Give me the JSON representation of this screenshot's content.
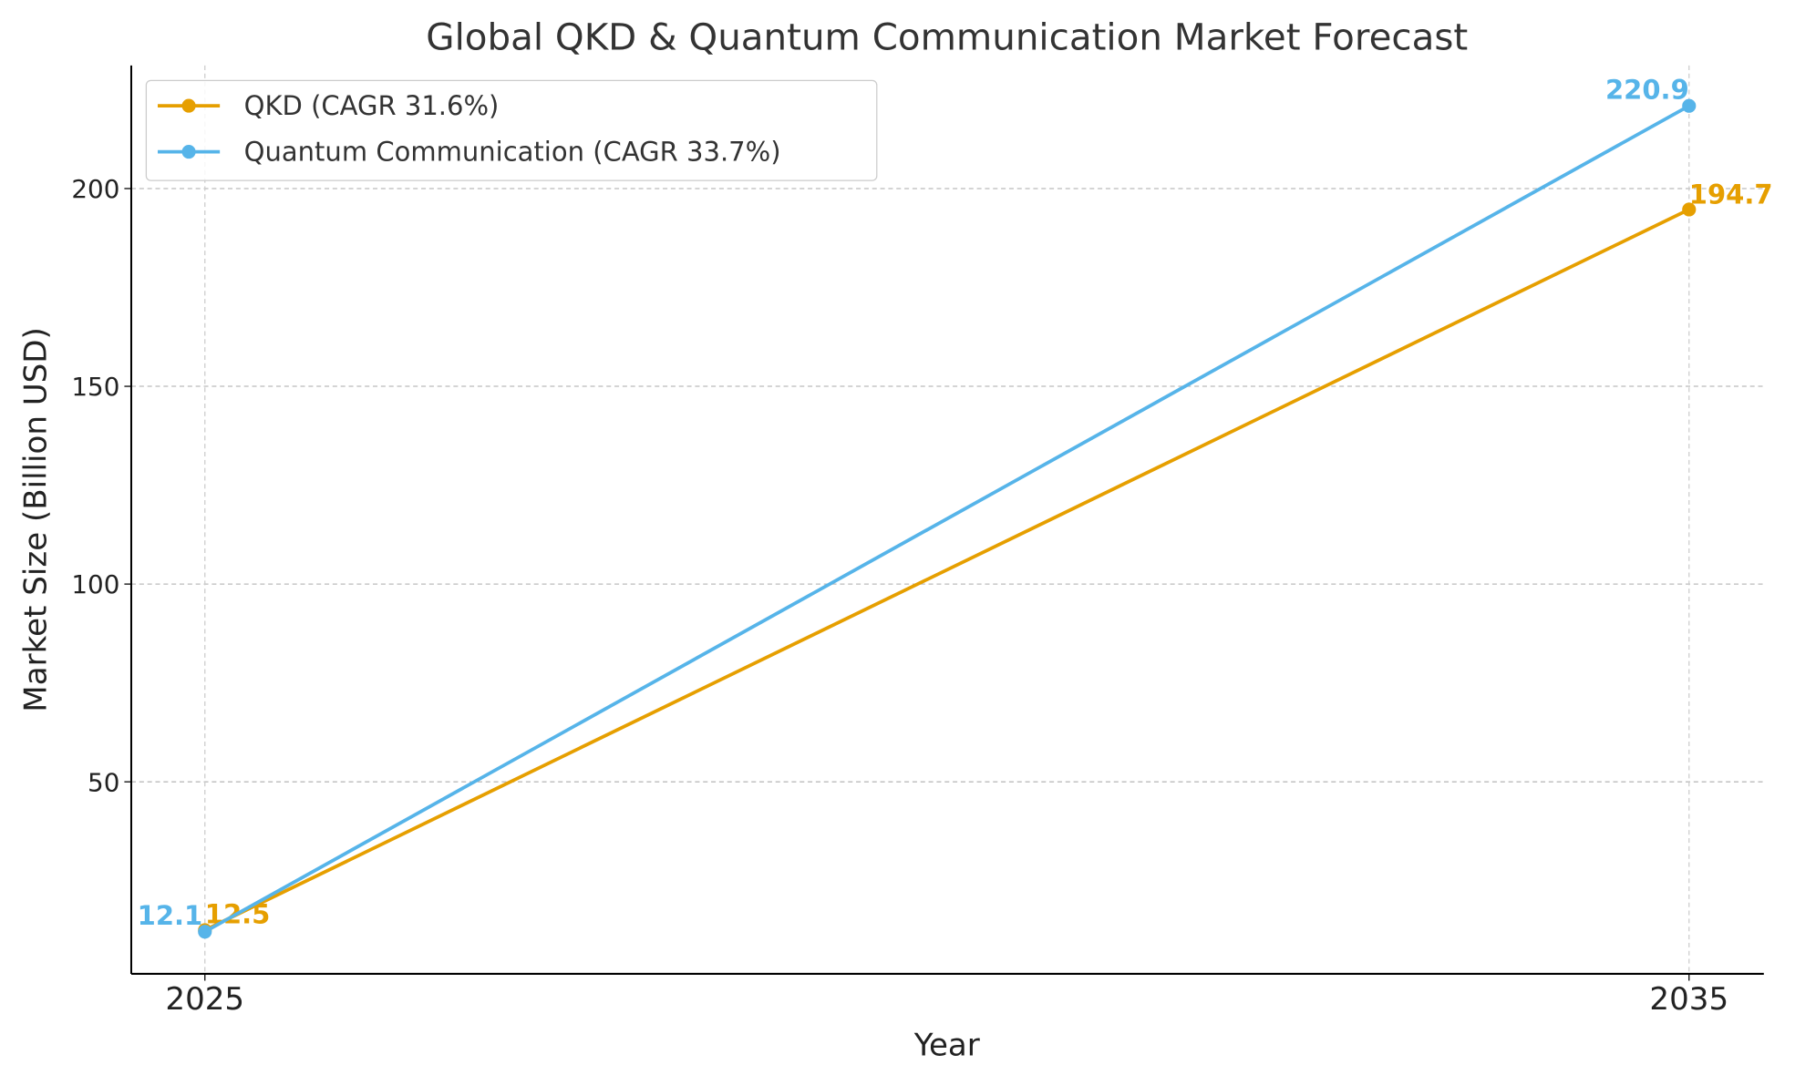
{
  "chart_data": {
    "type": "line",
    "title": "Global QKD & Quantum Communication Market Forecast",
    "xlabel": "Year",
    "ylabel": "Market Size (Billion USD)",
    "x": [
      2025,
      2035
    ],
    "x_ticks": [
      "2025",
      "2035"
    ],
    "y_ticks": [
      50,
      100,
      150,
      200
    ],
    "ylim": [
      1.5,
      231
    ],
    "xlim": [
      2024.5,
      2035.5
    ],
    "grid": true,
    "legend_position": "top-left",
    "series": [
      {
        "name": "QKD (CAGR 31.6%)",
        "values": [
          12.5,
          194.7
        ],
        "labels": [
          "12.5",
          "194.7"
        ],
        "color": "#E69F00"
      },
      {
        "name": "Quantum Communication (CAGR 33.7%)",
        "values": [
          12.1,
          220.9
        ],
        "labels": [
          "12.1",
          "220.9"
        ],
        "color": "#56B4E9"
      }
    ]
  }
}
